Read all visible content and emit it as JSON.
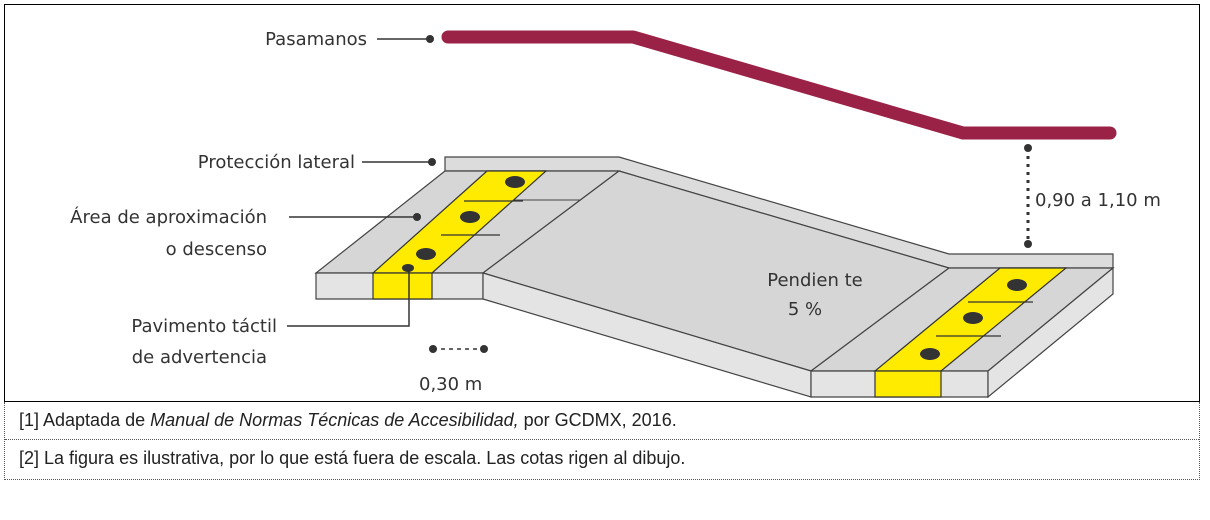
{
  "labels": {
    "handrail": "Pasamanos",
    "side_protection": "Protección lateral",
    "approach_line1": "Área de aproximación",
    "approach_line2": "o descenso",
    "tactile_line1": "Pavimento táctil",
    "tactile_line2": "de advertencia",
    "slope_line1": "Pendien te",
    "slope_line2": "5 %",
    "height_dim": "0,90 a 1,10 m",
    "width_dim": "0,30 m"
  },
  "notes": {
    "note1_prefix": "[1] Adaptada de ",
    "note1_title": "Manual de Normas Técnicas de Accesibilidad,",
    "note1_suffix": " por GCDMX, 2016.",
    "note2": "[2] La figura es ilustrativa, por lo que está fuera de escala. Las cotas rigen al dibujo."
  },
  "colors": {
    "handrail": "#9b2247",
    "tactile": "#ffeb00",
    "ramp_top": "#d6d6d6",
    "ramp_side": "#e4e4e4",
    "outline": "#444444"
  }
}
